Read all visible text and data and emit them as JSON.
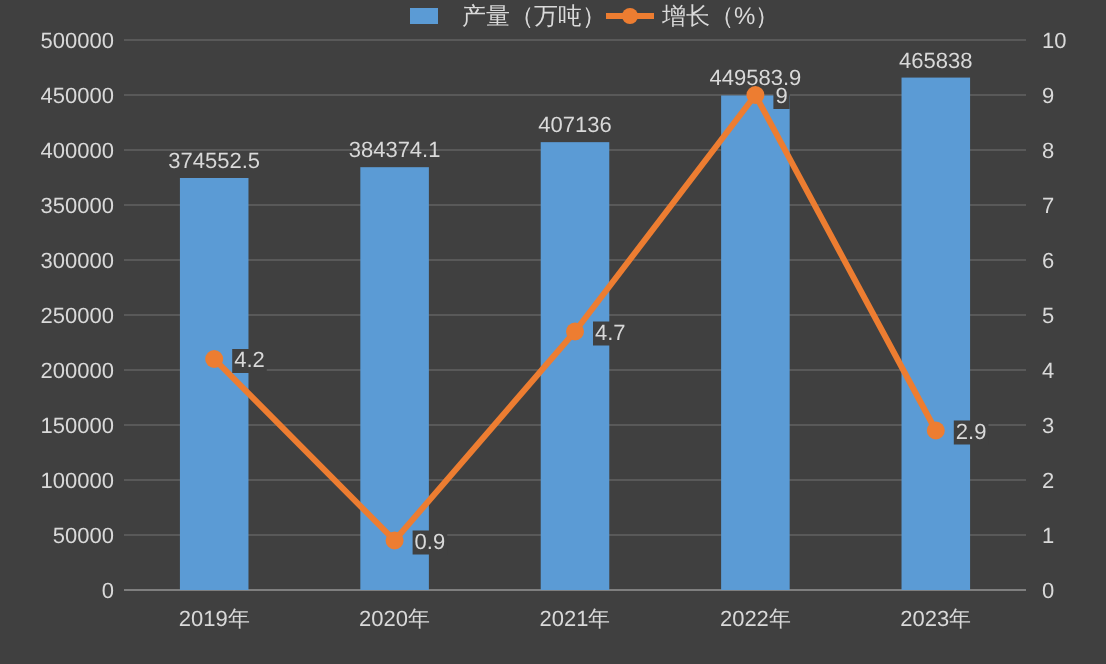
{
  "chart_data": {
    "type": "bar",
    "categories": [
      "2019年",
      "2020年",
      "2021年",
      "2022年",
      "2023年"
    ],
    "series": [
      {
        "name": "产量（万吨）",
        "color": "#5b9bd5",
        "values": [
          374552.5,
          384374.1,
          407136,
          449583.9,
          465838
        ]
      },
      {
        "name": "增长（%）",
        "type": "line",
        "axis": "y2",
        "color": "#ed7d31",
        "marker": "circle",
        "values": [
          4.2,
          0.9,
          4.7,
          9,
          2.9
        ]
      }
    ],
    "ylim": [
      0,
      500000
    ],
    "yticks": [
      0,
      50000,
      100000,
      150000,
      200000,
      250000,
      300000,
      350000,
      400000,
      450000,
      500000
    ],
    "y2lim": [
      0,
      10
    ],
    "y2ticks": [
      0,
      1,
      2,
      3,
      4,
      5,
      6,
      7,
      8,
      9,
      10
    ],
    "grid": "y",
    "legend": "top",
    "data_labels": true
  }
}
